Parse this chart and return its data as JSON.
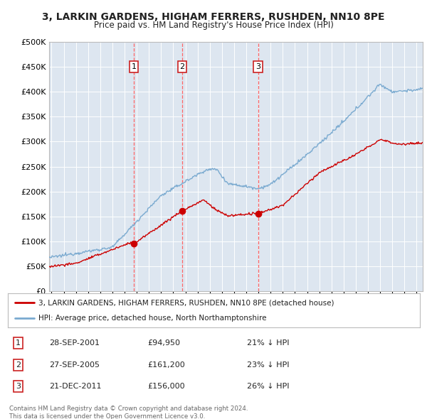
{
  "title": "3, LARKIN GARDENS, HIGHAM FERRERS, RUSHDEN, NN10 8PE",
  "subtitle": "Price paid vs. HM Land Registry's House Price Index (HPI)",
  "background_color": "#ffffff",
  "plot_bg_color": "#dde6f0",
  "grid_color": "#ffffff",
  "ylim": [
    0,
    500000
  ],
  "yticks": [
    0,
    50000,
    100000,
    150000,
    200000,
    250000,
    300000,
    350000,
    400000,
    450000,
    500000
  ],
  "ytick_labels": [
    "£0",
    "£50K",
    "£100K",
    "£150K",
    "£200K",
    "£250K",
    "£300K",
    "£350K",
    "£400K",
    "£450K",
    "£500K"
  ],
  "xlim_start": 1994.8,
  "xlim_end": 2025.5,
  "sale_dates": [
    2001.75,
    2005.74,
    2011.97
  ],
  "sale_prices": [
    94950,
    161200,
    156000
  ],
  "sale_labels": [
    "1",
    "2",
    "3"
  ],
  "red_line_color": "#cc0000",
  "blue_line_color": "#7aaad0",
  "dashed_line_color": "#ff6666",
  "legend_label_red": "3, LARKIN GARDENS, HIGHAM FERRERS, RUSHDEN, NN10 8PE (detached house)",
  "legend_label_blue": "HPI: Average price, detached house, North Northamptonshire",
  "table_rows": [
    [
      "1",
      "28-SEP-2001",
      "£94,950",
      "21% ↓ HPI"
    ],
    [
      "2",
      "27-SEP-2005",
      "£161,200",
      "23% ↓ HPI"
    ],
    [
      "3",
      "21-DEC-2011",
      "£156,000",
      "26% ↓ HPI"
    ]
  ],
  "footer": "Contains HM Land Registry data © Crown copyright and database right 2024.\nThis data is licensed under the Open Government Licence v3.0."
}
